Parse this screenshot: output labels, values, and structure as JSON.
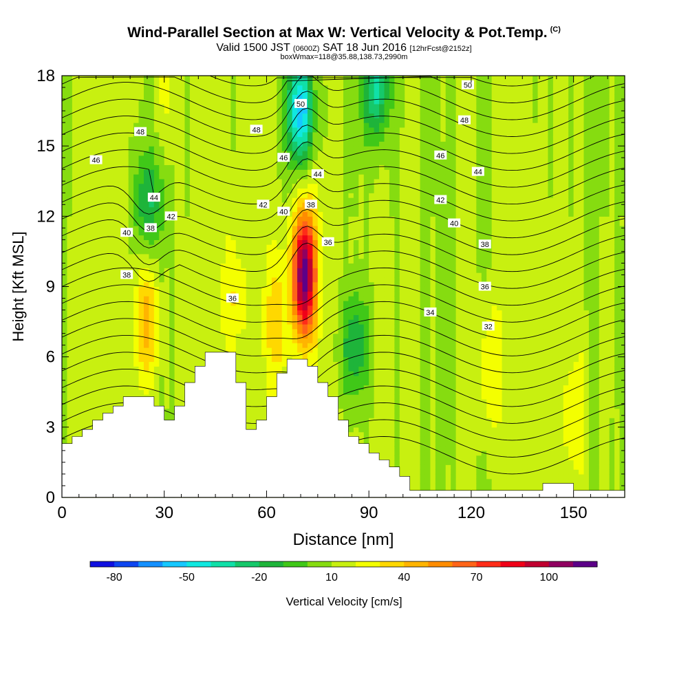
{
  "header": {
    "title": "Wind-Parallel Section at Max W: Vertical Velocity & Pot.Temp.",
    "copyright": "(C)",
    "subtitle_valid": "Valid 1500 JST",
    "subtitle_utc": "(0600Z)",
    "subtitle_date": "SAT 18 Jun 2016",
    "subtitle_fcst": "[12hrFcst@2152z]",
    "subtitle_box": "boxWmax=118@35.88,138.73,2990m"
  },
  "colors": {
    "palette": [
      "#1010e0",
      "#0e46f0",
      "#1490ff",
      "#16c8ff",
      "#10e8e0",
      "#10e0a8",
      "#16c86a",
      "#1eb43a",
      "#40c818",
      "#86dc10",
      "#c8f010",
      "#f4ff00",
      "#ffd800",
      "#ffb400",
      "#ff8c00",
      "#ff6418",
      "#ff2c18",
      "#f00018",
      "#c00030",
      "#900060",
      "#5c0088"
    ],
    "terrain": "#ffffff",
    "contour": "#000000"
  },
  "chart_data": {
    "type": "heatmap",
    "xlabel": "Distance [nm]",
    "ylabel": "Height [Kft MSL]",
    "xlim": [
      0,
      165
    ],
    "ylim": [
      0,
      18
    ],
    "x_ticks": [
      0,
      30,
      60,
      90,
      120,
      150
    ],
    "y_ticks": [
      0,
      3,
      6,
      9,
      12,
      15,
      18
    ],
    "colorbar": {
      "label": "Vertical Velocity [cm/s]",
      "range": [
        -90,
        120
      ],
      "interval": 10,
      "tick_values": [
        -80,
        -50,
        -20,
        10,
        40,
        70,
        100
      ],
      "tick_labels": [
        "-80",
        "-50",
        "-20",
        "10",
        "40",
        "70",
        "100"
      ]
    },
    "max_w": {
      "value": 118,
      "x": 71,
      "y": 9.8
    },
    "updrafts": [
      {
        "x": 25,
        "y": 7.5,
        "w": 45
      },
      {
        "x": 71,
        "y": 9.5,
        "w": 118
      },
      {
        "x": 50,
        "y": 8.5,
        "w": 28
      },
      {
        "x": 63,
        "y": 7.5,
        "w": 35
      },
      {
        "x": 30,
        "y": 17.5,
        "w": 25
      },
      {
        "x": 125,
        "y": 5.5,
        "w": 30
      },
      {
        "x": 150,
        "y": 3.5,
        "w": 25
      }
    ],
    "downdrafts": [
      {
        "x": 70,
        "y": 16.5,
        "w": -55
      },
      {
        "x": 92,
        "y": 17.5,
        "w": -35
      },
      {
        "x": 86,
        "y": 6.5,
        "w": -20
      },
      {
        "x": 25,
        "y": 12.5,
        "w": -20
      }
    ],
    "terrain_height": [
      [
        0,
        2.3
      ],
      [
        3,
        2.6
      ],
      [
        6,
        2.9
      ],
      [
        9,
        3.3
      ],
      [
        12,
        3.6
      ],
      [
        15,
        3.9
      ],
      [
        18,
        4.3
      ],
      [
        24,
        4.3
      ],
      [
        27,
        3.9
      ],
      [
        30,
        3.3
      ],
      [
        33,
        3.9
      ],
      [
        36,
        4.9
      ],
      [
        39,
        5.6
      ],
      [
        42,
        6.2
      ],
      [
        48,
        6.2
      ],
      [
        51,
        4.9
      ],
      [
        54,
        2.9
      ],
      [
        57,
        3.3
      ],
      [
        60,
        4.3
      ],
      [
        63,
        5.3
      ],
      [
        66,
        5.9
      ],
      [
        69,
        5.9
      ],
      [
        72,
        5.6
      ],
      [
        75,
        4.9
      ],
      [
        78,
        4.3
      ],
      [
        81,
        3.3
      ],
      [
        84,
        2.6
      ],
      [
        87,
        2.3
      ],
      [
        90,
        1.9
      ],
      [
        93,
        1.6
      ],
      [
        96,
        1.3
      ],
      [
        99,
        0.9
      ],
      [
        102,
        0.3
      ],
      [
        138,
        0.3
      ],
      [
        141,
        0.6
      ],
      [
        147,
        0.6
      ],
      [
        150,
        0.3
      ],
      [
        165,
        0.3
      ]
    ],
    "theta_contour_labels": [
      {
        "v": "50",
        "x": 70,
        "y": 16.8
      },
      {
        "v": "50",
        "x": 119,
        "y": 17.6
      },
      {
        "v": "48",
        "x": 23,
        "y": 15.6
      },
      {
        "v": "48",
        "x": 57,
        "y": 15.7
      },
      {
        "v": "48",
        "x": 118,
        "y": 16.1
      },
      {
        "v": "46",
        "x": 10,
        "y": 14.4
      },
      {
        "v": "46",
        "x": 65,
        "y": 14.5
      },
      {
        "v": "46",
        "x": 111,
        "y": 14.6
      },
      {
        "v": "44",
        "x": 27,
        "y": 12.8
      },
      {
        "v": "44",
        "x": 75,
        "y": 13.8
      },
      {
        "v": "44",
        "x": 122,
        "y": 13.9
      },
      {
        "v": "42",
        "x": 32,
        "y": 12.0
      },
      {
        "v": "42",
        "x": 59,
        "y": 12.5
      },
      {
        "v": "42",
        "x": 111,
        "y": 12.7
      },
      {
        "v": "40",
        "x": 19,
        "y": 11.3
      },
      {
        "v": "40",
        "x": 65,
        "y": 12.2
      },
      {
        "v": "40",
        "x": 115,
        "y": 11.7
      },
      {
        "v": "38",
        "x": 26,
        "y": 11.5
      },
      {
        "v": "38",
        "x": 73,
        "y": 12.5
      },
      {
        "v": "38",
        "x": 19,
        "y": 9.5
      },
      {
        "v": "38",
        "x": 124,
        "y": 10.8
      },
      {
        "v": "36",
        "x": 78,
        "y": 10.9
      },
      {
        "v": "36",
        "x": 50,
        "y": 8.5
      },
      {
        "v": "36",
        "x": 124,
        "y": 9.0
      },
      {
        "v": "34",
        "x": 108,
        "y": 7.9
      },
      {
        "v": "32",
        "x": 125,
        "y": 7.3
      }
    ]
  }
}
